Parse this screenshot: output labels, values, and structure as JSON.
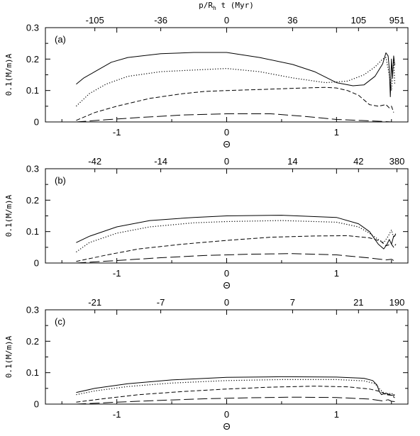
{
  "top_axis_title": "p/R_h t (Myr)",
  "top_axis_title_main": "p/R",
  "top_axis_title_sub": "h",
  "top_axis_title_rest": " t (Myr)",
  "chart_data": [
    {
      "type": "line",
      "panel_label": "(a)",
      "ylabel": "0.1(M/m)A",
      "xlabel": "Θ",
      "xlim": [
        -1.65,
        1.65
      ],
      "ylim": [
        0,
        0.3
      ],
      "x_ticks": [
        -1,
        0,
        1
      ],
      "y_ticks": [
        0,
        0.1,
        0.2,
        0.3
      ],
      "top_ticks": [
        {
          "x": -1.2,
          "label": "-105"
        },
        {
          "x": -0.6,
          "label": "-36"
        },
        {
          "x": 0.0,
          "label": "0"
        },
        {
          "x": 0.6,
          "label": "36"
        },
        {
          "x": 1.2,
          "label": "105"
        },
        {
          "x": 1.55,
          "label": "951"
        }
      ],
      "series": [
        {
          "style": "solid",
          "x": [
            -1.37,
            -1.3,
            -1.2,
            -1.05,
            -0.9,
            -0.6,
            -0.3,
            0.0,
            0.3,
            0.6,
            0.8,
            1.0,
            1.15,
            1.25,
            1.35,
            1.42,
            1.45,
            1.47,
            1.48,
            1.49,
            1.5,
            1.51,
            1.52,
            1.53
          ],
          "y": [
            0.12,
            0.14,
            0.16,
            0.19,
            0.205,
            0.217,
            0.221,
            0.221,
            0.205,
            0.183,
            0.16,
            0.125,
            0.115,
            0.118,
            0.145,
            0.185,
            0.22,
            0.21,
            0.17,
            0.08,
            0.2,
            0.14,
            0.21,
            0.18
          ]
        },
        {
          "style": "dotted",
          "x": [
            -1.37,
            -1.25,
            -1.1,
            -0.9,
            -0.6,
            -0.3,
            0.0,
            0.3,
            0.6,
            0.9,
            1.1,
            1.25,
            1.35,
            1.42,
            1.45,
            1.48,
            1.5,
            1.52,
            1.53
          ],
          "y": [
            0.05,
            0.09,
            0.12,
            0.145,
            0.16,
            0.165,
            0.17,
            0.16,
            0.14,
            0.125,
            0.13,
            0.15,
            0.175,
            0.2,
            0.205,
            0.15,
            0.1,
            0.2,
            0.12
          ]
        },
        {
          "style": "dashed",
          "x": [
            -1.37,
            -1.2,
            -1.0,
            -0.7,
            -0.4,
            -0.2,
            0.0,
            0.3,
            0.6,
            0.9,
            1.0,
            1.1,
            1.2,
            1.3,
            1.38,
            1.45,
            1.48,
            1.5,
            1.52
          ],
          "y": [
            0.005,
            0.03,
            0.05,
            0.075,
            0.09,
            0.097,
            0.1,
            0.103,
            0.107,
            0.11,
            0.108,
            0.1,
            0.085,
            0.055,
            0.05,
            0.055,
            0.045,
            0.05,
            0.03
          ]
        },
        {
          "style": "longdash",
          "x": [
            -1.37,
            -1.1,
            -0.8,
            -0.4,
            0.0,
            0.4,
            0.7,
            1.0,
            1.2,
            1.4,
            1.5
          ],
          "y": [
            0.0,
            0.007,
            0.014,
            0.022,
            0.026,
            0.026,
            0.018,
            0.008,
            0.005,
            0.002,
            0.0
          ]
        }
      ]
    },
    {
      "type": "line",
      "panel_label": "(b)",
      "ylabel": "0.1(M/m)A",
      "xlabel": "Θ",
      "xlim": [
        -1.65,
        1.65
      ],
      "ylim": [
        0,
        0.3
      ],
      "x_ticks": [
        -1,
        0,
        1
      ],
      "y_ticks": [
        0,
        0.1,
        0.2,
        0.3
      ],
      "top_ticks": [
        {
          "x": -1.2,
          "label": "-42"
        },
        {
          "x": -0.6,
          "label": "-14"
        },
        {
          "x": 0.0,
          "label": "0"
        },
        {
          "x": 0.6,
          "label": "14"
        },
        {
          "x": 1.2,
          "label": "42"
        },
        {
          "x": 1.55,
          "label": "380"
        }
      ],
      "series": [
        {
          "style": "solid",
          "x": [
            -1.37,
            -1.25,
            -1.0,
            -0.7,
            -0.3,
            0.0,
            0.5,
            1.0,
            1.2,
            1.3,
            1.38,
            1.43,
            1.46,
            1.48,
            1.5,
            1.52,
            1.54
          ],
          "y": [
            0.065,
            0.085,
            0.115,
            0.135,
            0.145,
            0.15,
            0.152,
            0.145,
            0.125,
            0.1,
            0.06,
            0.045,
            0.06,
            0.075,
            0.06,
            0.085,
            0.09
          ]
        },
        {
          "style": "dotted",
          "x": [
            -1.37,
            -1.25,
            -1.0,
            -0.7,
            -0.3,
            0.0,
            0.5,
            1.0,
            1.2,
            1.3,
            1.38,
            1.43,
            1.47,
            1.5,
            1.52,
            1.54
          ],
          "y": [
            0.035,
            0.065,
            0.095,
            0.115,
            0.128,
            0.132,
            0.135,
            0.13,
            0.115,
            0.095,
            0.075,
            0.065,
            0.085,
            0.105,
            0.08,
            0.095
          ]
        },
        {
          "style": "dashed",
          "x": [
            -1.37,
            -1.1,
            -0.8,
            -0.4,
            0.0,
            0.4,
            0.8,
            1.1,
            1.3,
            1.4,
            1.45,
            1.5,
            1.52,
            1.54
          ],
          "y": [
            0.005,
            0.025,
            0.045,
            0.06,
            0.072,
            0.082,
            0.086,
            0.087,
            0.08,
            0.07,
            0.055,
            0.06,
            0.05,
            0.06
          ]
        },
        {
          "style": "longdash",
          "x": [
            -1.37,
            -1.0,
            -0.6,
            -0.2,
            0.2,
            0.6,
            1.0,
            1.3,
            1.45,
            1.5,
            1.52
          ],
          "y": [
            0.0,
            0.008,
            0.017,
            0.024,
            0.028,
            0.03,
            0.026,
            0.016,
            0.01,
            0.012,
            0.008
          ]
        }
      ]
    },
    {
      "type": "line",
      "panel_label": "(c)",
      "ylabel": "0.1(M/m)A",
      "xlabel": "Θ",
      "xlim": [
        -1.65,
        1.65
      ],
      "ylim": [
        0,
        0.3
      ],
      "x_ticks": [
        -1,
        0,
        1
      ],
      "y_ticks": [
        0,
        0.1,
        0.2,
        0.3
      ],
      "top_ticks": [
        {
          "x": -1.2,
          "label": "-21"
        },
        {
          "x": -0.6,
          "label": "-7"
        },
        {
          "x": 0.0,
          "label": "0"
        },
        {
          "x": 0.6,
          "label": "7"
        },
        {
          "x": 1.2,
          "label": "21"
        },
        {
          "x": 1.55,
          "label": "190"
        }
      ],
      "series": [
        {
          "style": "solid",
          "x": [
            -1.37,
            -1.2,
            -0.9,
            -0.5,
            0.0,
            0.5,
            1.0,
            1.25,
            1.33,
            1.37,
            1.39,
            1.41,
            1.45,
            1.5,
            1.53
          ],
          "y": [
            0.037,
            0.05,
            0.065,
            0.077,
            0.085,
            0.087,
            0.086,
            0.082,
            0.075,
            0.06,
            0.04,
            0.03,
            0.035,
            0.028,
            0.03
          ]
        },
        {
          "style": "dotted",
          "x": [
            -1.37,
            -1.2,
            -0.9,
            -0.5,
            0.0,
            0.5,
            1.0,
            1.25,
            1.35,
            1.4,
            1.45,
            1.5,
            1.53
          ],
          "y": [
            0.03,
            0.042,
            0.056,
            0.067,
            0.075,
            0.078,
            0.078,
            0.074,
            0.065,
            0.045,
            0.03,
            0.035,
            0.025
          ]
        },
        {
          "style": "dashed",
          "x": [
            -1.37,
            -1.1,
            -0.8,
            -0.4,
            0.0,
            0.4,
            0.8,
            1.1,
            1.3,
            1.4,
            1.45,
            1.5,
            1.53
          ],
          "y": [
            0.006,
            0.018,
            0.03,
            0.04,
            0.048,
            0.054,
            0.057,
            0.055,
            0.048,
            0.04,
            0.03,
            0.028,
            0.02
          ]
        },
        {
          "style": "longdash",
          "x": [
            -1.37,
            -1.0,
            -0.6,
            -0.2,
            0.2,
            0.6,
            1.0,
            1.3,
            1.42,
            1.47,
            1.5,
            1.53
          ],
          "y": [
            0.0,
            0.006,
            0.012,
            0.017,
            0.02,
            0.022,
            0.021,
            0.016,
            0.01,
            0.014,
            0.009,
            0.008
          ]
        }
      ]
    }
  ]
}
